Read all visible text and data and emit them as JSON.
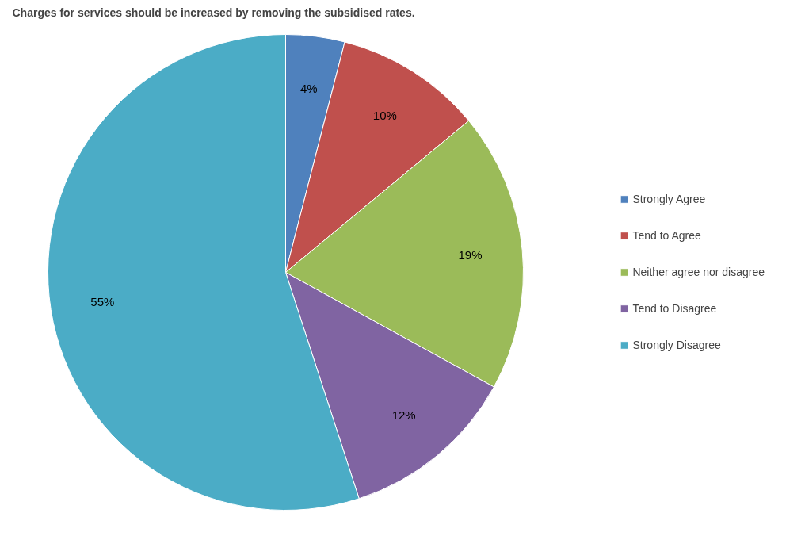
{
  "chart_data": {
    "type": "pie",
    "title": "Charges for services should be increased by removing the subsidised rates.",
    "categories": [
      "Strongly Agree",
      "Tend to Agree",
      "Neither agree nor disagree",
      "Tend to Disagree",
      "Strongly Disagree"
    ],
    "values": [
      4,
      10,
      19,
      12,
      55
    ],
    "colors": [
      "#4f81bd",
      "#c0504d",
      "#9bbb59",
      "#8064a2",
      "#4bacc6"
    ],
    "value_labels": [
      "4%",
      "10%",
      "19%",
      "12%",
      "55%"
    ],
    "legend": "right"
  }
}
